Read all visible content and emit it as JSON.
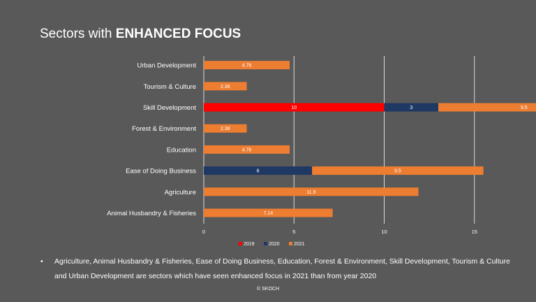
{
  "slide": {
    "title_prefix": "Sectors with ",
    "title_emphasis": "ENHANCED FOCUS",
    "bullet": "Agriculture, Animal Husbandry & Fisheries, Ease of Doing Business, Education, Forest & Environment, Skill Development, Tourism & Culture and Urban Development are sectors which have seen enhanced focus in 2021 than from year 2020",
    "footer": "© SKOCH"
  },
  "chart_data": {
    "type": "bar",
    "orientation": "horizontal",
    "stacked": true,
    "categories": [
      "Urban Development",
      "Tourism & Culture",
      "Skill Development",
      "Forest & Environment",
      "Education",
      "Ease of Doing Business",
      "Agriculture",
      "Animal Husbandry & Fisheries"
    ],
    "series": [
      {
        "name": "2019",
        "color": "#ff0000",
        "values": [
          null,
          null,
          10,
          null,
          null,
          null,
          null,
          null
        ]
      },
      {
        "name": "2020",
        "color": "#203864",
        "values": [
          null,
          null,
          3,
          null,
          null,
          6,
          null,
          null
        ]
      },
      {
        "name": "2021",
        "color": "#ed7d31",
        "values": [
          4.76,
          2.38,
          9.5,
          2.38,
          4.76,
          9.5,
          11.9,
          7.14
        ]
      }
    ],
    "xlim": [
      0,
      25
    ],
    "xticks": [
      0,
      5,
      10,
      15,
      20,
      25
    ],
    "grid": true,
    "legend": "bottom"
  }
}
